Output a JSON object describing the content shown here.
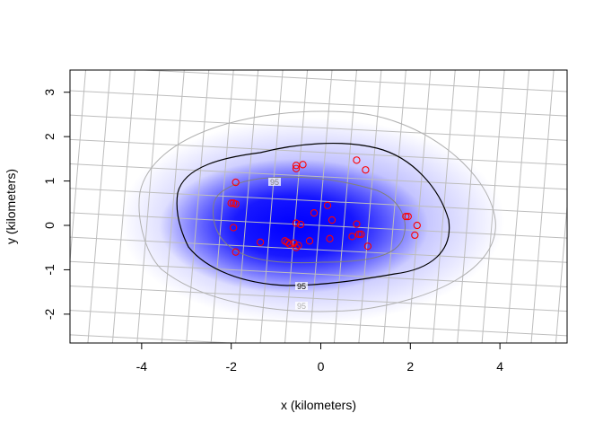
{
  "chart_data": {
    "type": "scatter",
    "xlabel": "x (kilometers)",
    "ylabel": "y (kilometers)",
    "xlim": [
      -5.6,
      5.5
    ],
    "ylim": [
      -2.65,
      3.5
    ],
    "xticks": [
      "-4",
      "-2",
      "0",
      "2",
      "4"
    ],
    "xtick_values": [
      -4,
      -2,
      0,
      2,
      4
    ],
    "yticks": [
      "-2",
      "-1",
      "0",
      "1",
      "2",
      "3"
    ],
    "ytick_values": [
      -2,
      -1,
      0,
      1,
      2,
      3
    ],
    "grid": true,
    "grid_style": "rotated graticule",
    "background": "kernel density heatmap",
    "colors": {
      "points": "#ff0000",
      "density_core": "#0000ff",
      "contour_main": "#000000",
      "contour_inner": "#808080",
      "contour_outer": "#b0b0b0",
      "graticule": "#bdbdbd"
    },
    "contours": [
      {
        "label": "95",
        "color": "#000000"
      },
      {
        "label": "95",
        "color": "#808080"
      },
      {
        "label": "95",
        "color": "#b0b0b0"
      }
    ],
    "points": [
      [
        -1.9,
        0.97
      ],
      [
        -2.0,
        0.5
      ],
      [
        -1.95,
        0.5
      ],
      [
        -1.9,
        0.48
      ],
      [
        -1.95,
        -0.05
      ],
      [
        -1.9,
        -0.6
      ],
      [
        -1.35,
        -0.38
      ],
      [
        -0.8,
        -0.35
      ],
      [
        -0.75,
        -0.38
      ],
      [
        -0.7,
        -0.42
      ],
      [
        -0.6,
        -0.4
      ],
      [
        -0.55,
        -0.5
      ],
      [
        -0.5,
        -0.45
      ],
      [
        -0.55,
        0.05
      ],
      [
        -0.45,
        0.02
      ],
      [
        -0.25,
        -0.35
      ],
      [
        -0.15,
        0.28
      ],
      [
        0.15,
        0.45
      ],
      [
        0.25,
        0.12
      ],
      [
        0.2,
        -0.3
      ],
      [
        -0.55,
        1.35
      ],
      [
        -0.55,
        1.28
      ],
      [
        -0.4,
        1.37
      ],
      [
        0.8,
        1.47
      ],
      [
        1.0,
        1.25
      ],
      [
        0.8,
        0.03
      ],
      [
        0.85,
        -0.2
      ],
      [
        0.9,
        -0.2
      ],
      [
        0.7,
        -0.25
      ],
      [
        1.05,
        -0.47
      ],
      [
        1.9,
        0.2
      ],
      [
        1.95,
        0.2
      ],
      [
        2.15,
        0.0
      ],
      [
        2.1,
        -0.22
      ]
    ]
  }
}
